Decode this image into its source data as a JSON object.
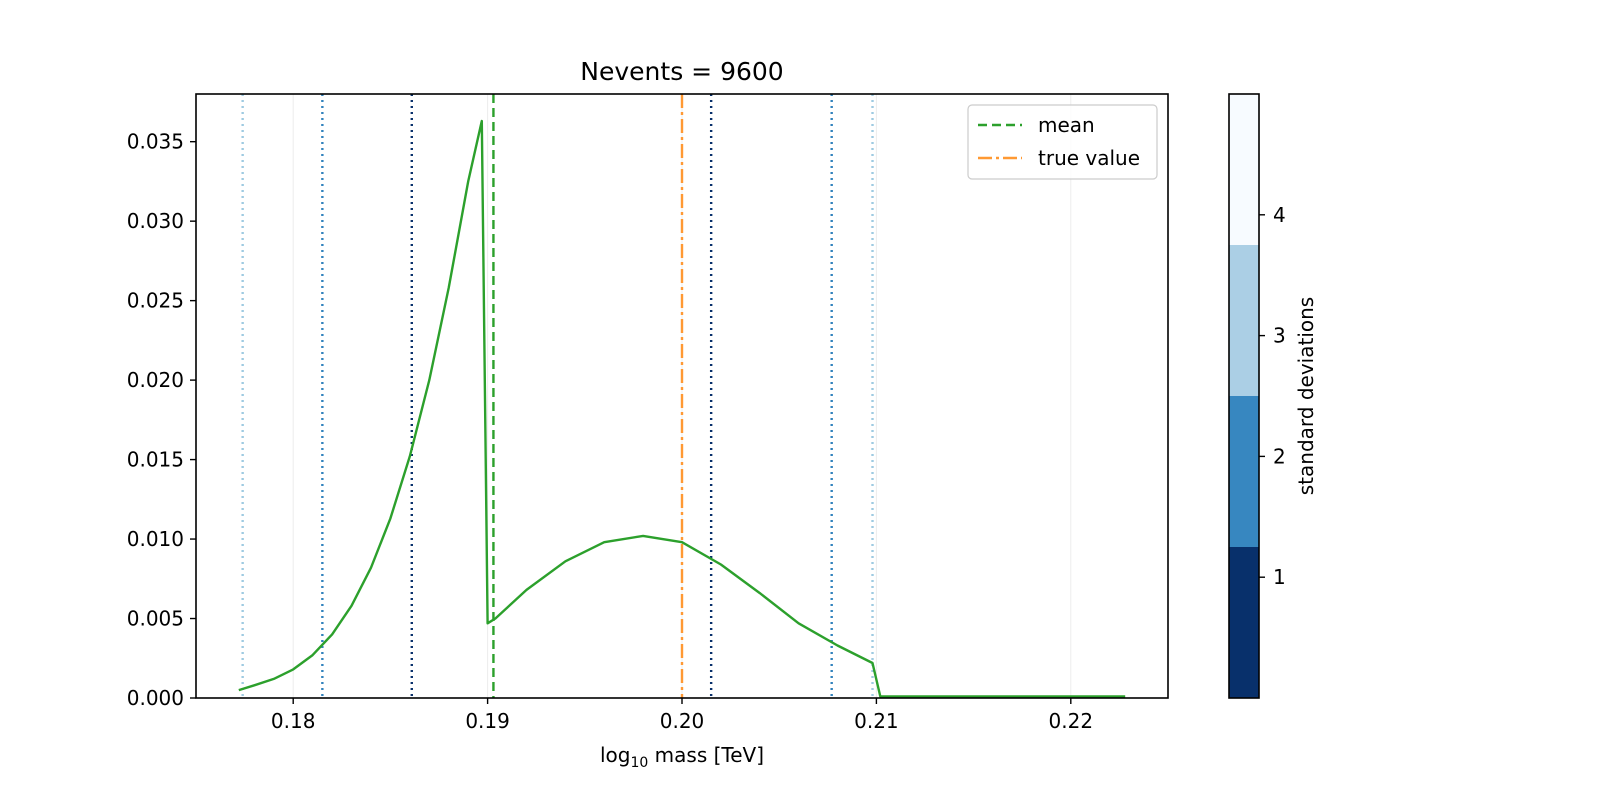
{
  "chart_data": {
    "type": "line",
    "title": "Nevents = 9600",
    "xlabel_main": "log",
    "xlabel_sub": "10",
    "xlabel_rest": " mass [TeV]",
    "ylabel": "",
    "xlim": [
      0.175,
      0.225
    ],
    "ylim": [
      0.0,
      0.038
    ],
    "x_ticks": [
      0.18,
      0.19,
      0.2,
      0.21,
      0.22
    ],
    "x_tick_labels": [
      "0.18",
      "0.19",
      "0.20",
      "0.21",
      "0.22"
    ],
    "y_ticks": [
      0.0,
      0.005,
      0.01,
      0.015,
      0.02,
      0.025,
      0.03,
      0.035
    ],
    "y_tick_labels": [
      "0.000",
      "0.005",
      "0.010",
      "0.015",
      "0.020",
      "0.025",
      "0.030",
      "0.035"
    ],
    "grid": "vertical-light",
    "series": [
      {
        "name": "",
        "color": "#2ca02c",
        "x": [
          0.1772,
          0.178,
          0.179,
          0.18,
          0.181,
          0.182,
          0.183,
          0.184,
          0.185,
          0.186,
          0.187,
          0.188,
          0.189,
          0.1897,
          0.19,
          0.1904,
          0.192,
          0.194,
          0.196,
          0.198,
          0.2,
          0.202,
          0.204,
          0.206,
          0.208,
          0.2098,
          0.2102,
          0.215,
          0.22,
          0.2228
        ],
        "y": [
          0.0005,
          0.0008,
          0.0012,
          0.0018,
          0.0027,
          0.004,
          0.0058,
          0.0082,
          0.0113,
          0.0152,
          0.02,
          0.0258,
          0.0325,
          0.0363,
          0.0047,
          0.005,
          0.0068,
          0.0086,
          0.0098,
          0.0102,
          0.0098,
          0.0084,
          0.0066,
          0.0047,
          0.0033,
          0.0022,
          0.0001,
          0.0001,
          0.0001,
          0.0001
        ]
      }
    ],
    "vertical_lines": [
      {
        "x": 0.1774,
        "color": "#9ecae1",
        "style": "dotted",
        "sigma": 3
      },
      {
        "x": 0.1815,
        "color": "#3182bd",
        "style": "dotted",
        "sigma": 2
      },
      {
        "x": 0.1861,
        "color": "#08306b",
        "style": "dotted",
        "sigma": 1
      },
      {
        "x": 0.2015,
        "color": "#08306b",
        "style": "dotted",
        "sigma": 1
      },
      {
        "x": 0.2077,
        "color": "#3182bd",
        "style": "dotted",
        "sigma": 2
      },
      {
        "x": 0.2098,
        "color": "#9ecae1",
        "style": "dotted",
        "sigma": 3
      },
      {
        "x": 0.1903,
        "color": "#2ca02c",
        "style": "dashed",
        "label": "mean"
      },
      {
        "x": 0.2,
        "color": "#ff9933",
        "style": "dashdot",
        "label": "true value"
      }
    ],
    "legend": {
      "placement": "top-right",
      "entries": [
        {
          "label": "mean",
          "color": "#2ca02c",
          "style": "dashed"
        },
        {
          "label": "true value",
          "color": "#ff9933",
          "style": "dashdot"
        }
      ]
    },
    "colorbar": {
      "label": "standard deviations",
      "range": [
        0,
        5
      ],
      "bands": [
        {
          "from": 0,
          "to": 1.25,
          "color": "#08306b"
        },
        {
          "from": 1.25,
          "to": 2.5,
          "color": "#3787c0"
        },
        {
          "from": 2.5,
          "to": 3.75,
          "color": "#abcfe5"
        },
        {
          "from": 3.75,
          "to": 5,
          "color": "#f7fbff"
        }
      ],
      "ticks": [
        1,
        2,
        3,
        4
      ],
      "tick_labels": [
        "1",
        "2",
        "3",
        "4"
      ]
    }
  }
}
